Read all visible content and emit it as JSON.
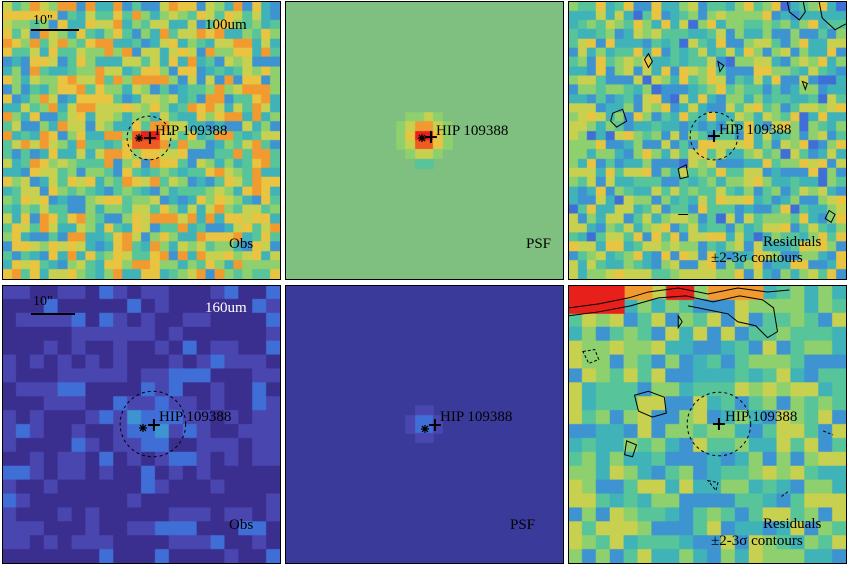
{
  "source_name": "HIP 109388",
  "scale_label": "10\"",
  "rows": [
    {
      "band": "100um",
      "panels": [
        {
          "kind": "obs",
          "corner_label": "Obs",
          "colormap": "obs100"
        },
        {
          "kind": "psf",
          "corner_label": "PSF",
          "colormap": "psf100"
        },
        {
          "kind": "res",
          "corner_label_1": "Residuals",
          "corner_label_2": "±2-3σ contours",
          "colormap": "res"
        }
      ]
    },
    {
      "band": "160um",
      "panels": [
        {
          "kind": "obs",
          "corner_label": "Obs",
          "colormap": "obs160"
        },
        {
          "kind": "psf",
          "corner_label": "PSF",
          "colormap": "psf160"
        },
        {
          "kind": "res",
          "corner_label_1": "Residuals",
          "corner_label_2": "±2-3σ contours",
          "colormap": "res"
        }
      ]
    }
  ],
  "colors": {
    "psf100_bg": "#7fbf7f",
    "psf160_bg": "#3a3a9a",
    "hot": "#e8201c"
  }
}
